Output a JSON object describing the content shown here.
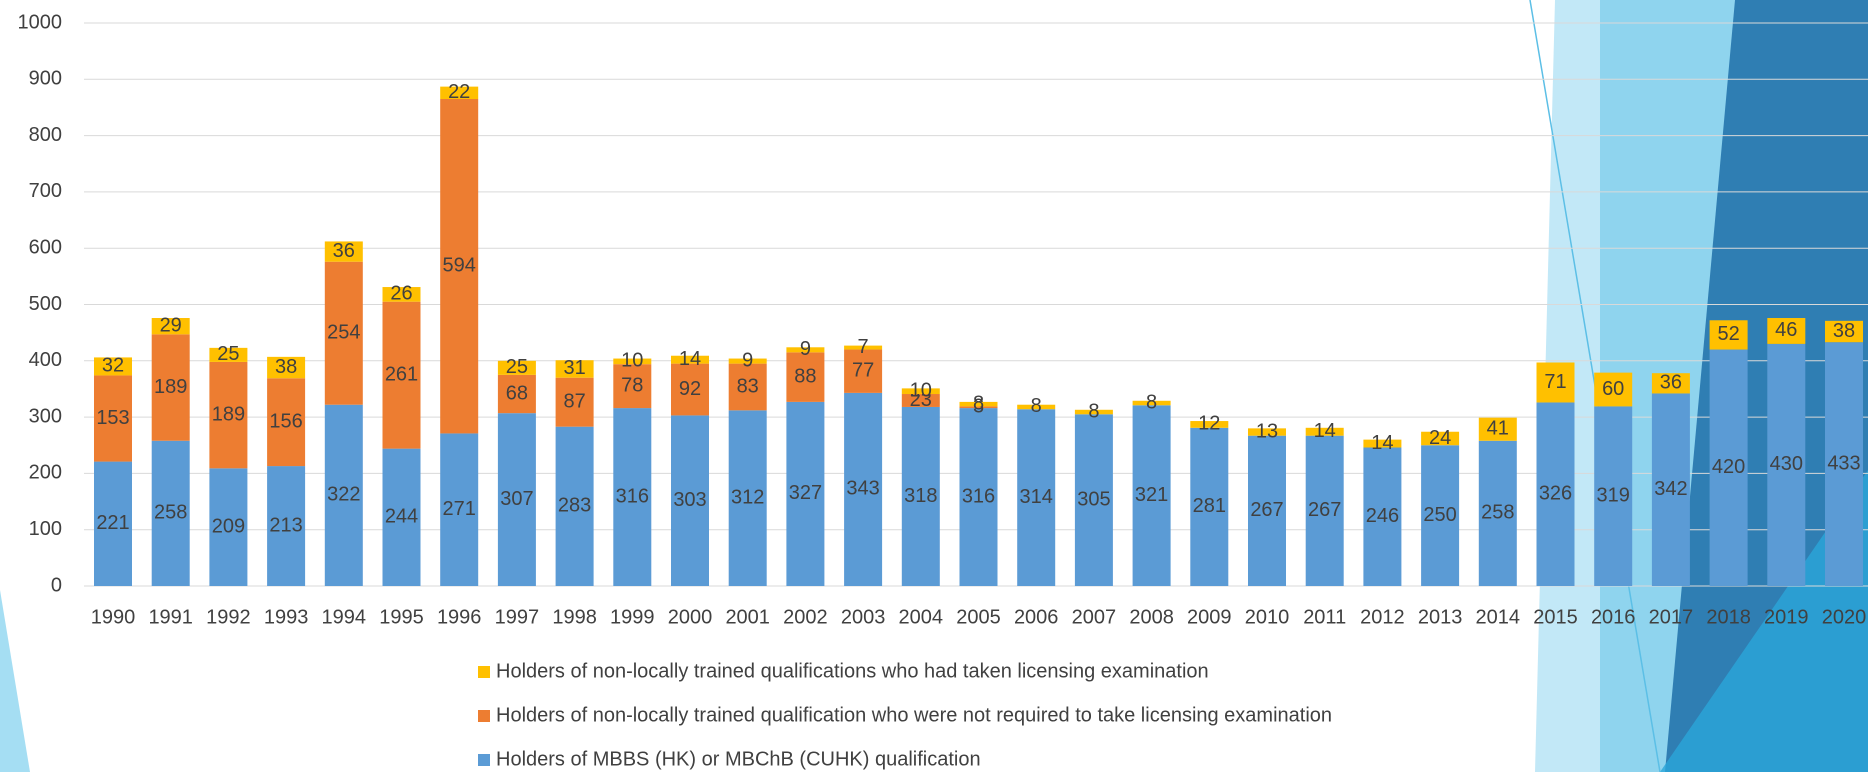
{
  "chart_data": {
    "type": "bar",
    "stacked": true,
    "categories": [
      "1990",
      "1991",
      "1992",
      "1993",
      "1994",
      "1995",
      "1996",
      "1997",
      "1998",
      "1999",
      "2000",
      "2001",
      "2002",
      "2003",
      "2004",
      "2005",
      "2006",
      "2007",
      "2008",
      "2009",
      "2010",
      "2011",
      "2012",
      "2013",
      "2014",
      "2015",
      "2016",
      "2017",
      "2018",
      "2019",
      "2020"
    ],
    "series": [
      {
        "name": "Holders of MBBS (HK) or MBChB (CUHK) qualification",
        "color": "#5b9bd5",
        "values": [
          221,
          258,
          209,
          213,
          322,
          244,
          271,
          307,
          283,
          316,
          303,
          312,
          327,
          343,
          318,
          316,
          314,
          305,
          321,
          281,
          267,
          267,
          246,
          250,
          258,
          326,
          319,
          342,
          420,
          430,
          433
        ]
      },
      {
        "name": "Holders of non-locally trained qualification who were not required to take licensing examination",
        "color": "#ed7d31",
        "values": [
          153,
          189,
          189,
          156,
          254,
          261,
          594,
          68,
          87,
          78,
          92,
          83,
          88,
          77,
          23,
          3,
          null,
          null,
          null,
          null,
          null,
          null,
          null,
          null,
          null,
          null,
          null,
          null,
          null,
          null,
          null
        ]
      },
      {
        "name": "Holders of non-locally trained qualifications who had taken licensing examination",
        "color": "#ffc000",
        "values": [
          32,
          29,
          25,
          38,
          36,
          26,
          22,
          25,
          31,
          10,
          14,
          9,
          9,
          7,
          10,
          8,
          8,
          8,
          8,
          12,
          13,
          14,
          14,
          24,
          41,
          71,
          60,
          36,
          52,
          46,
          38
        ]
      }
    ],
    "ylim": [
      0,
      1000
    ],
    "yticks": [
      0,
      100,
      200,
      300,
      400,
      500,
      600,
      700,
      800,
      900,
      1000
    ],
    "grid": true
  }
}
